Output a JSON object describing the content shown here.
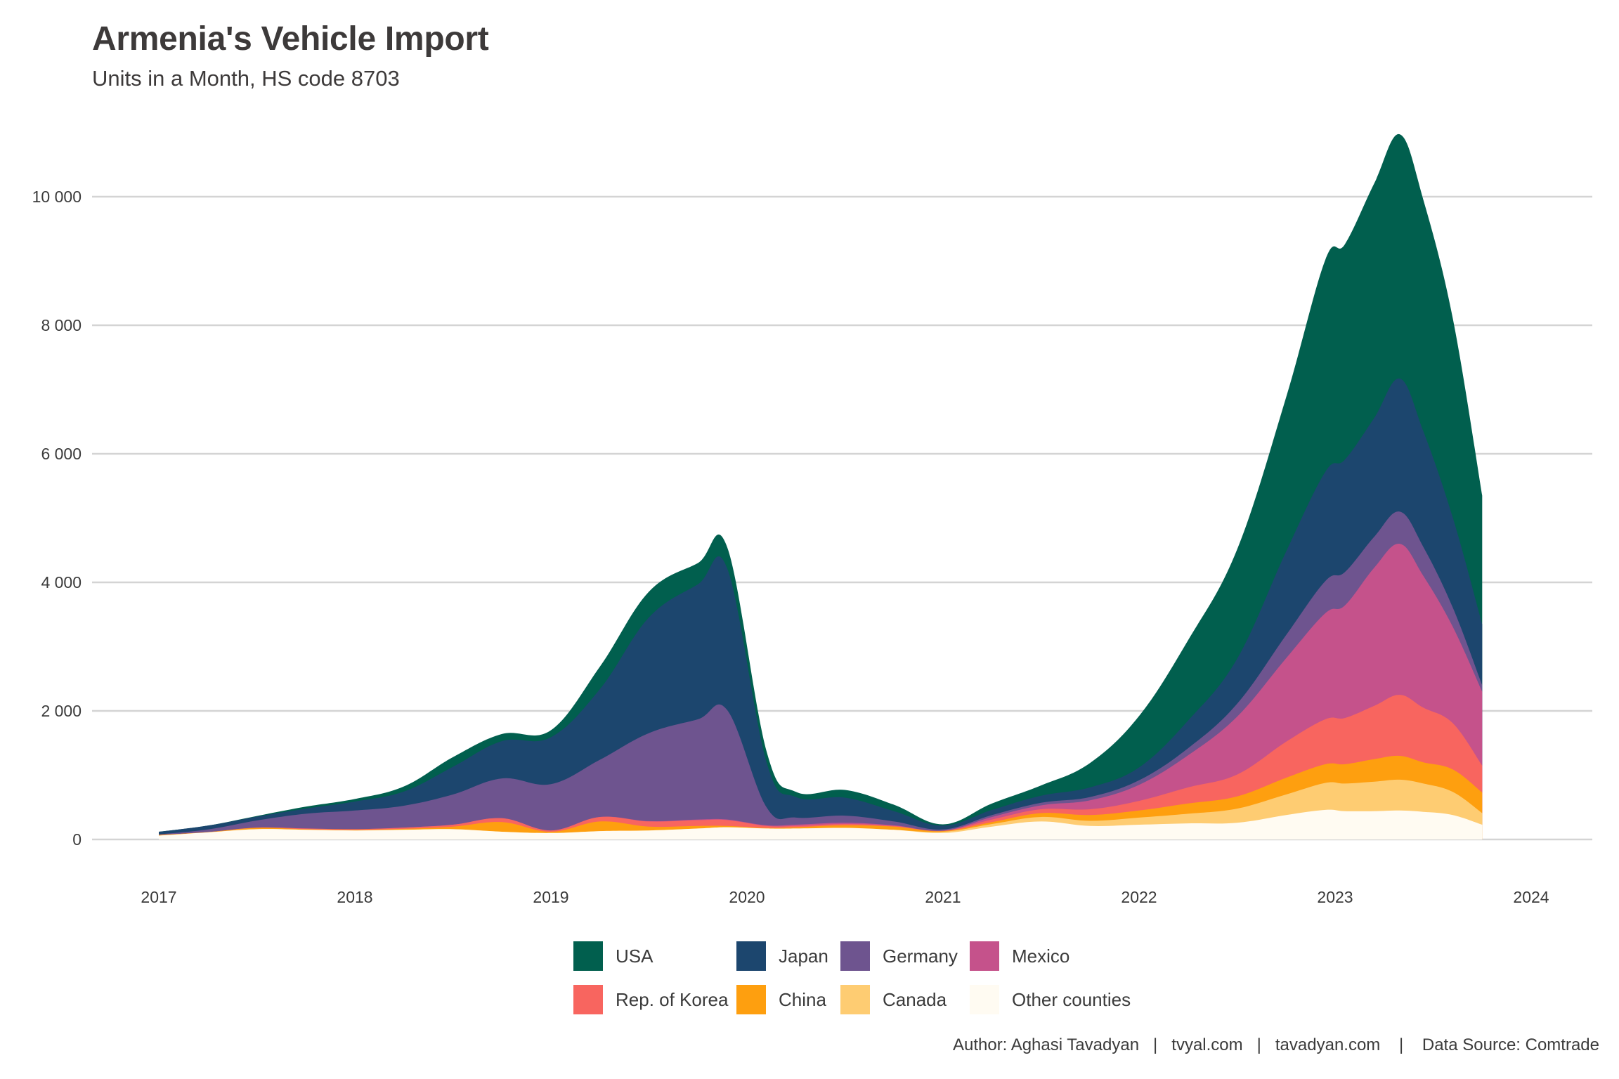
{
  "header": {
    "title": "Armenia's Vehicle Import",
    "subtitle": "Units in a Month, HS code 8703"
  },
  "caption": "Author: Aghasi Tavadyan   |   tvyal.com   |   tavadyan.com    |    Data Source: Comtrade",
  "chart_data": {
    "type": "area",
    "stacked": true,
    "title": "Armenia's Vehicle Import",
    "subtitle": "Units in a Month, HS code 8703",
    "xlabel": "",
    "ylabel": "",
    "xlim": [
      2016.7,
      2024.3
    ],
    "ylim": [
      0,
      11000
    ],
    "x_ticks": [
      2017,
      2018,
      2019,
      2020,
      2021,
      2022,
      2023,
      2024
    ],
    "x_tick_labels": [
      "2017",
      "2018",
      "2019",
      "2020",
      "2021",
      "2022",
      "2023",
      "2024"
    ],
    "y_ticks": [
      0,
      2000,
      4000,
      6000,
      8000,
      10000
    ],
    "y_tick_labels": [
      "0",
      "2 000",
      "4 000",
      "6 000",
      "8 000",
      "10 000"
    ],
    "grid": "horizontal",
    "legend_position": "bottom",
    "x": [
      2017.0,
      2017.25,
      2017.5,
      2017.75,
      2018.0,
      2018.25,
      2018.5,
      2018.75,
      2019.0,
      2019.25,
      2019.5,
      2019.75,
      2019.9,
      2020.1,
      2020.25,
      2020.5,
      2020.75,
      2021.0,
      2021.25,
      2021.5,
      2021.75,
      2022.0,
      2022.25,
      2022.5,
      2022.75,
      2022.95,
      2023.05,
      2023.2,
      2023.33,
      2023.45,
      2023.6,
      2023.75
    ],
    "series": [
      {
        "name": "Other counties",
        "color": "#FFFBF2",
        "values": [
          60,
          110,
          160,
          150,
          140,
          150,
          160,
          120,
          100,
          130,
          140,
          170,
          190,
          170,
          170,
          180,
          150,
          100,
          200,
          280,
          210,
          230,
          250,
          260,
          380,
          460,
          440,
          440,
          450,
          430,
          380,
          230
        ]
      },
      {
        "name": "Canada",
        "color": "#FECC72",
        "values": [
          0,
          0,
          0,
          0,
          0,
          0,
          0,
          0,
          0,
          0,
          0,
          0,
          0,
          0,
          0,
          0,
          0,
          20,
          40,
          70,
          80,
          110,
          150,
          220,
          320,
          420,
          430,
          460,
          480,
          440,
          360,
          180
        ]
      },
      {
        "name": "China",
        "color": "#FE9F0F",
        "values": [
          10,
          5,
          20,
          10,
          10,
          15,
          40,
          150,
          20,
          150,
          60,
          40,
          20,
          10,
          20,
          40,
          50,
          10,
          30,
          60,
          90,
          110,
          160,
          190,
          260,
          290,
          300,
          350,
          370,
          330,
          350,
          320
        ]
      },
      {
        "name": "Rep. of Korea",
        "color": "#F8655F",
        "values": [
          0,
          0,
          5,
          10,
          10,
          20,
          30,
          60,
          20,
          70,
          80,
          90,
          90,
          30,
          20,
          20,
          10,
          5,
          40,
          60,
          90,
          150,
          250,
          340,
          560,
          700,
          720,
          830,
          950,
          850,
          720,
          420
        ]
      },
      {
        "name": "Mexico",
        "color": "#C5528B",
        "values": [
          0,
          0,
          0,
          0,
          0,
          0,
          0,
          0,
          0,
          0,
          5,
          10,
          10,
          10,
          20,
          20,
          10,
          0,
          40,
          60,
          140,
          250,
          500,
          900,
          1300,
          1650,
          1750,
          2150,
          2350,
          2050,
          1500,
          1150
        ]
      },
      {
        "name": "Germany",
        "color": "#6E548F",
        "values": [
          10,
          40,
          110,
          230,
          290,
          340,
          470,
          620,
          720,
          890,
          1370,
          1560,
          1700,
          280,
          110,
          110,
          60,
          20,
          30,
          40,
          50,
          70,
          110,
          200,
          360,
          500,
          520,
          480,
          500,
          450,
          300,
          100
        ]
      },
      {
        "name": "Japan",
        "color": "#1C466E",
        "values": [
          40,
          60,
          60,
          80,
          140,
          220,
          430,
          580,
          730,
          1100,
          1800,
          2100,
          2200,
          700,
          320,
          280,
          160,
          60,
          80,
          110,
          150,
          200,
          430,
          700,
          1300,
          1700,
          1750,
          1850,
          2070,
          1800,
          1400,
          950
        ]
      },
      {
        "name": "USA",
        "color": "#015F4E",
        "values": [
          0,
          0,
          10,
          30,
          40,
          80,
          150,
          110,
          110,
          350,
          400,
          330,
          330,
          170,
          80,
          120,
          100,
          20,
          100,
          160,
          380,
          800,
          1250,
          1700,
          2400,
          3300,
          3350,
          3650,
          3800,
          3600,
          3100,
          2000
        ]
      }
    ]
  },
  "legend": {
    "items": [
      {
        "label": "USA",
        "color": "#015F4E"
      },
      {
        "label": "Japan",
        "color": "#1C466E"
      },
      {
        "label": "Germany",
        "color": "#6E548F"
      },
      {
        "label": "Mexico",
        "color": "#C5528B"
      },
      {
        "label": "Rep. of Korea",
        "color": "#F8655F"
      },
      {
        "label": "China",
        "color": "#FE9F0F"
      },
      {
        "label": "Canada",
        "color": "#FECC72"
      },
      {
        "label": "Other counties",
        "color": "#FFFBF2"
      }
    ]
  }
}
